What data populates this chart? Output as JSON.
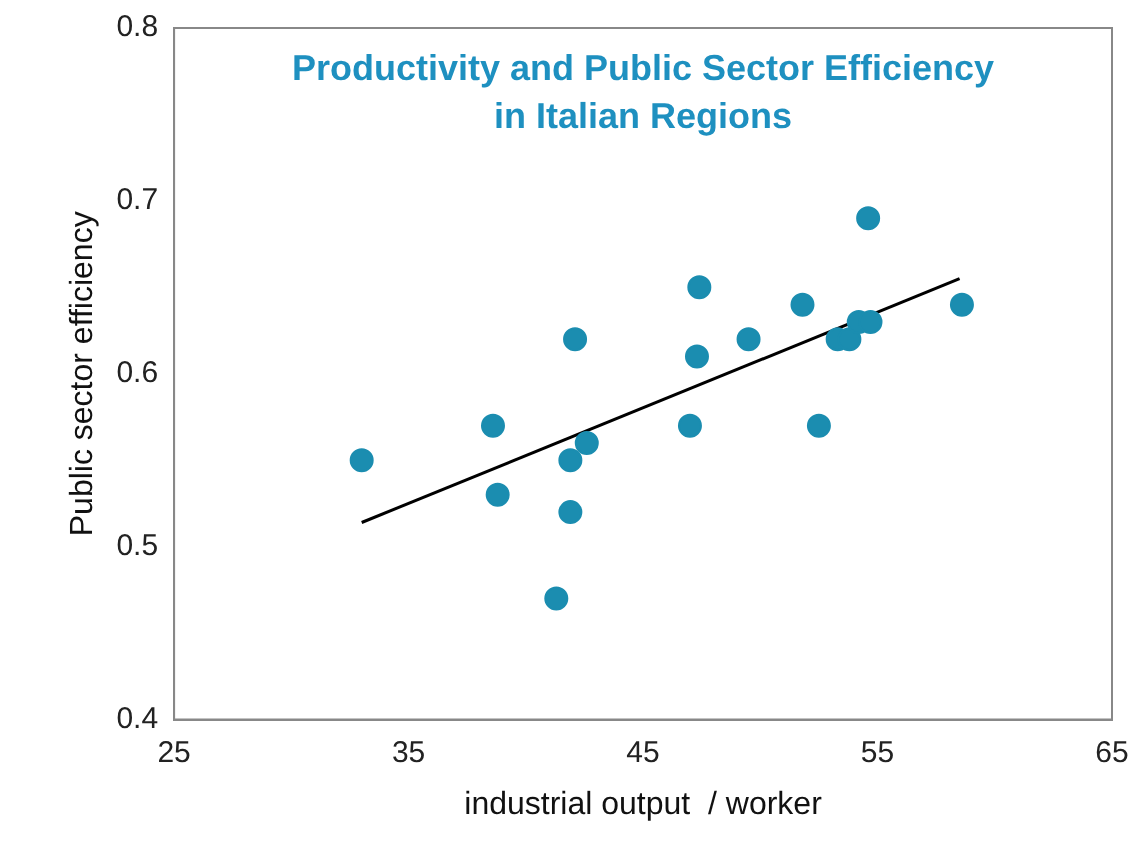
{
  "chart_data": {
    "type": "scatter",
    "title": "Productivity and Public Sector Efficiency\nin Italian Regions",
    "xlabel": "industrial output  / worker",
    "ylabel": "Public sector efficiency",
    "xlim": [
      25,
      65
    ],
    "xticks": [
      25,
      35,
      45,
      55,
      65
    ],
    "ylim": [
      0.4,
      0.8
    ],
    "yticks": [
      0.4,
      0.5,
      0.6,
      0.7,
      0.8
    ],
    "grid": false,
    "legend": false,
    "marker": "circle",
    "series": [
      {
        "color": "#1b8db0",
        "x": [
          33.0,
          38.6,
          38.8,
          41.3,
          41.9,
          41.9,
          42.1,
          42.6,
          47.0,
          47.3,
          47.4,
          49.5,
          51.8,
          52.5,
          53.3,
          53.8,
          54.2,
          54.6,
          54.7,
          58.6
        ],
        "values": [
          0.55,
          0.57,
          0.53,
          0.47,
          0.52,
          0.55,
          0.62,
          0.56,
          0.57,
          0.61,
          0.65,
          0.62,
          0.64,
          0.57,
          0.62,
          0.62,
          0.63,
          0.69,
          0.63,
          0.64
        ]
      },
      {
        "type": "line",
        "color": "#000000",
        "line_style": "solid",
        "marker": "none",
        "x": [
          33.0,
          58.5
        ],
        "values": [
          0.514,
          0.655
        ]
      }
    ]
  }
}
